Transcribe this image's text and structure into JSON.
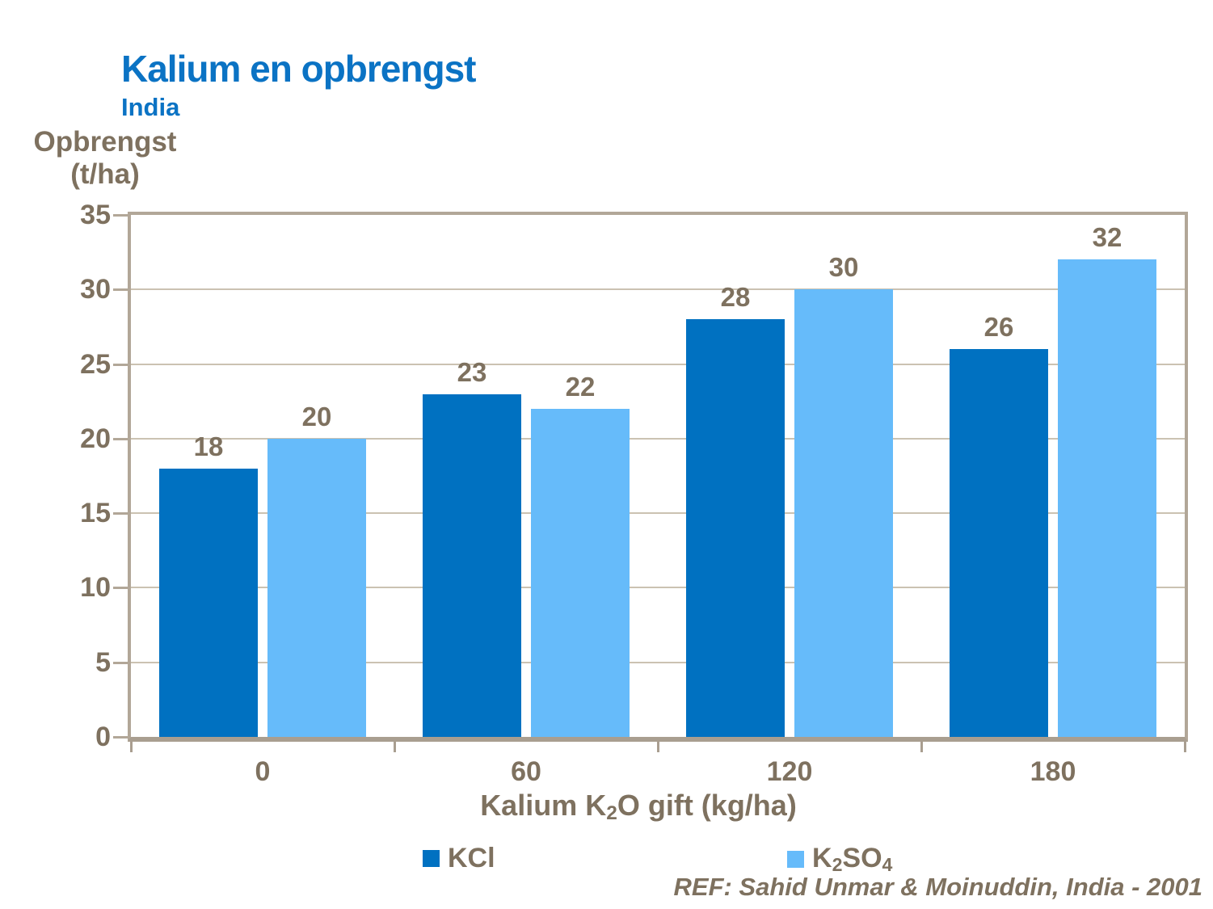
{
  "title": "Kalium en opbrengst",
  "subtitle": "India",
  "y_axis": {
    "label_line1": "Opbrengst",
    "label_line2": "(t/ha)"
  },
  "x_axis": {
    "title_pre": "Kalium K",
    "title_sub": "2",
    "title_post": "O gift (kg/ha)"
  },
  "legend": [
    {
      "label": "KCl",
      "color": "#0071C1"
    },
    {
      "parts": [
        "K",
        "2",
        "SO",
        "4"
      ],
      "color": "#66BBFA"
    }
  ],
  "reference": "REF: Sahid Unmar & Moinuddin, India - 2001",
  "colors": {
    "title_blue": "#0B73C4",
    "text_brown": "#7E715F",
    "axis_tan": "#B2A798",
    "axis_dark_tan": "#A99E90",
    "grid_tan": "#CBC2B2",
    "bar_dark_blue": "#0071C1",
    "bar_light_blue": "#66BBFA"
  },
  "chart_data": {
    "type": "bar",
    "categories": [
      "0",
      "60",
      "120",
      "180"
    ],
    "series": [
      {
        "name": "KCl",
        "color": "#0071C1",
        "values": [
          18,
          23,
          28,
          26
        ]
      },
      {
        "name": "K2SO4",
        "color": "#66BBFA",
        "values": [
          20,
          22,
          30,
          32
        ]
      }
    ],
    "title": "Kalium en opbrengst",
    "subtitle": "India",
    "xlabel": "Kalium K2O gift (kg/ha)",
    "ylabel": "Opbrengst (t/ha)",
    "ylim": [
      0,
      35
    ],
    "ytick_step": 5,
    "grid": true,
    "legend_position": "bottom",
    "data_labels": true
  }
}
